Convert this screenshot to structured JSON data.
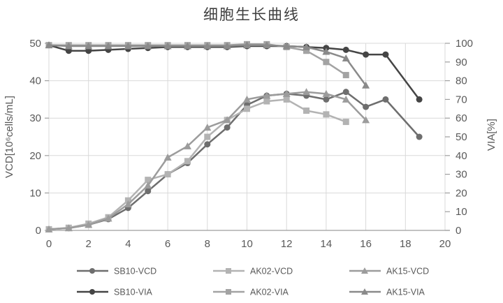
{
  "chart_data": {
    "type": "line",
    "title": "细胞生长曲线",
    "grid": true,
    "legend_position": "bottom",
    "x_axis": {
      "range": [
        0,
        20
      ],
      "ticks": [
        0,
        2,
        4,
        6,
        8,
        10,
        12,
        14,
        16,
        18,
        20
      ]
    },
    "left_axis": {
      "title": "VCD[10⁶cells/mL]",
      "range": [
        0,
        50
      ],
      "ticks": [
        0,
        10,
        20,
        30,
        40,
        50
      ]
    },
    "right_axis": {
      "title": "VIA[%]",
      "range": [
        0,
        100
      ],
      "ticks": [
        0,
        10,
        20,
        30,
        40,
        50,
        60,
        70,
        80,
        90,
        100
      ]
    },
    "colors": {
      "gridline": "#d9d9d9",
      "axis_line": "#9e9e9e",
      "tick_label": "#595959",
      "legend_label": "#595959",
      "title": "#3f3f3f"
    },
    "series": [
      {
        "name": "SB10-VCD",
        "marker": "circle",
        "axis": "left",
        "color": "#6e6e6e",
        "x": [
          0,
          1,
          2,
          3,
          4,
          5,
          6,
          7,
          8,
          9,
          10,
          11,
          12,
          13,
          14,
          15,
          16,
          17,
          18.7
        ],
        "y": [
          0.3,
          0.6,
          1.5,
          3,
          6,
          10.5,
          15,
          18,
          23,
          27.5,
          33.5,
          36,
          36.5,
          36,
          35,
          37,
          33,
          35,
          25
        ]
      },
      {
        "name": "AK02-VCD",
        "marker": "square",
        "axis": "left",
        "color": "#b3b3b3",
        "x": [
          0,
          1,
          2,
          3,
          4,
          5,
          6,
          7,
          8,
          9,
          10,
          11,
          12,
          13,
          14,
          15
        ],
        "y": [
          0.3,
          0.7,
          1.8,
          3.5,
          8,
          13.5,
          15,
          18.5,
          25,
          29.5,
          32.5,
          34.5,
          35,
          32,
          31,
          29
        ]
      },
      {
        "name": "AK15-VCD",
        "marker": "triangle",
        "axis": "left",
        "color": "#9c9c9c",
        "x": [
          0,
          1,
          2,
          3,
          4,
          5,
          6,
          7,
          8,
          9,
          10,
          11,
          12,
          13,
          14,
          15,
          16
        ],
        "y": [
          0.3,
          0.6,
          1.5,
          3.2,
          7,
          12,
          19.5,
          22.5,
          27.5,
          29.5,
          35,
          36,
          36.5,
          37,
          36.5,
          35,
          29.5
        ]
      },
      {
        "name": "SB10-VIA",
        "marker": "circle",
        "axis": "right",
        "color": "#454545",
        "x": [
          0,
          1,
          2,
          3,
          4,
          5,
          6,
          7,
          8,
          9,
          10,
          11,
          12,
          13,
          14,
          15,
          16,
          17,
          18.7
        ],
        "y": [
          99,
          96,
          96,
          96.5,
          97,
          97.5,
          98,
          98,
          98,
          98,
          98.5,
          98.5,
          98.5,
          98,
          97.5,
          96.5,
          94,
          94,
          70
        ]
      },
      {
        "name": "AK02-VIA",
        "marker": "square",
        "axis": "right",
        "color": "#a3a3a3",
        "x": [
          0,
          1,
          2,
          3,
          4,
          5,
          6,
          7,
          8,
          9,
          10,
          11,
          12,
          13,
          14,
          15
        ],
        "y": [
          99,
          99,
          99,
          99,
          99,
          99,
          99,
          99,
          99,
          99,
          99.5,
          99.5,
          98,
          96,
          90,
          83
        ]
      },
      {
        "name": "AK15-VIA",
        "marker": "triangle",
        "axis": "right",
        "color": "#8a8a8a",
        "x": [
          0,
          1,
          2,
          3,
          4,
          5,
          6,
          7,
          8,
          9,
          10,
          11,
          12,
          13,
          14,
          15,
          16
        ],
        "y": [
          99,
          98.5,
          98.5,
          98.5,
          98.5,
          98.5,
          98.5,
          98.5,
          98.5,
          98.5,
          99,
          99,
          98.5,
          98,
          95.5,
          92,
          77.5
        ]
      }
    ]
  }
}
